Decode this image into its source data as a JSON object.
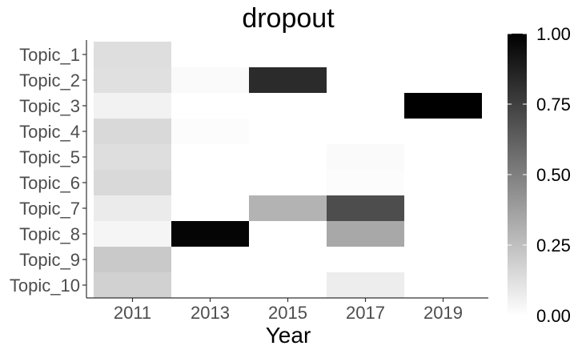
{
  "chart_data": {
    "type": "heatmap",
    "title": "dropout",
    "xlabel": "Year",
    "ylabel": "",
    "x": [
      "2011",
      "2013",
      "2015",
      "2017",
      "2019"
    ],
    "y": [
      "Topic_1",
      "Topic_2",
      "Topic_3",
      "Topic_4",
      "Topic_5",
      "Topic_6",
      "Topic_7",
      "Topic_8",
      "Topic_9",
      "Topic_10"
    ],
    "cells": [
      {
        "x": "2011",
        "y": "Topic_1",
        "value": 0.13
      },
      {
        "x": "2011",
        "y": "Topic_2",
        "value": 0.12
      },
      {
        "x": "2011",
        "y": "Topic_3",
        "value": 0.05
      },
      {
        "x": "2011",
        "y": "Topic_4",
        "value": 0.15
      },
      {
        "x": "2011",
        "y": "Topic_5",
        "value": 0.13
      },
      {
        "x": "2011",
        "y": "Topic_6",
        "value": 0.15
      },
      {
        "x": "2011",
        "y": "Topic_7",
        "value": 0.08
      },
      {
        "x": "2011",
        "y": "Topic_8",
        "value": 0.04
      },
      {
        "x": "2011",
        "y": "Topic_9",
        "value": 0.21
      },
      {
        "x": "2011",
        "y": "Topic_10",
        "value": 0.18
      },
      {
        "x": "2013",
        "y": "Topic_2",
        "value": 0.02
      },
      {
        "x": "2013",
        "y": "Topic_4",
        "value": 0.01
      },
      {
        "x": "2013",
        "y": "Topic_8",
        "value": 0.98
      },
      {
        "x": "2015",
        "y": "Topic_2",
        "value": 0.83
      },
      {
        "x": "2015",
        "y": "Topic_7",
        "value": 0.3
      },
      {
        "x": "2017",
        "y": "Topic_5",
        "value": 0.02
      },
      {
        "x": "2017",
        "y": "Topic_6",
        "value": 0.01
      },
      {
        "x": "2017",
        "y": "Topic_7",
        "value": 0.7
      },
      {
        "x": "2017",
        "y": "Topic_8",
        "value": 0.34
      },
      {
        "x": "2017",
        "y": "Topic_10",
        "value": 0.07
      },
      {
        "x": "2019",
        "y": "Topic_3",
        "value": 1.0
      }
    ],
    "colorbar": {
      "min": 0.0,
      "max": 1.0,
      "ticks": [
        "0.00",
        "0.25",
        "0.50",
        "0.75",
        "1.00"
      ],
      "low_color": "#ffffff",
      "high_color": "#000000"
    },
    "grid": false,
    "legend_position": "right"
  }
}
